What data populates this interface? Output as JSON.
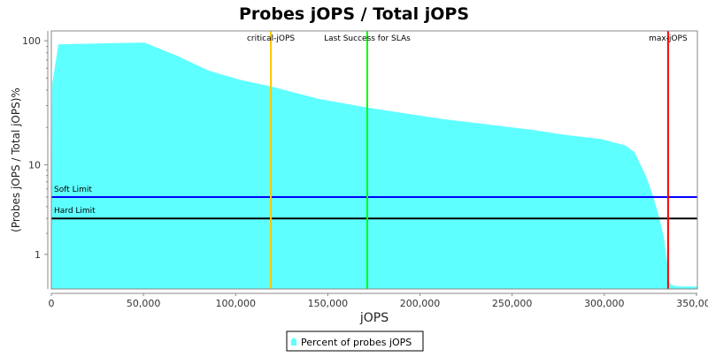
{
  "chart_data": {
    "type": "area",
    "title": "Probes jOPS / Total jOPS",
    "xlabel": "jOPS",
    "ylabel": "(Probes jOPS / Total jOPS)%",
    "xlim": [
      0,
      350500
    ],
    "ylim": [
      0,
      120
    ],
    "y_scale": "log",
    "grid": false,
    "x_ticks": [
      0,
      50000,
      100000,
      150000,
      200000,
      250000,
      300000,
      350000
    ],
    "x_tick_labels": [
      "0",
      "50,000",
      "100,000",
      "150,000",
      "200,000",
      "250,000",
      "300,000",
      "350,000"
    ],
    "y_ticks": [
      1,
      10,
      100
    ],
    "y_tick_labels": [
      "1",
      "10",
      "100"
    ],
    "series": [
      {
        "name": "Percent of probes jOPS",
        "color": "#5effff",
        "x": [
          0,
          480,
          3840,
          50400,
          68200,
          85500,
          101800,
          119100,
          145000,
          171400,
          212200,
          260200,
          279400,
          298600,
          311600,
          316400,
          322600,
          326500,
          329800,
          332200,
          334200,
          334600,
          336100,
          339000,
          350500
        ],
        "y": [
          0,
          44.9,
          93.7,
          96.8,
          75.7,
          57.4,
          48.7,
          42.8,
          34.0,
          28.9,
          23.4,
          19.2,
          17.4,
          16.1,
          14.3,
          12.6,
          7.9,
          5.06,
          3.06,
          1.85,
          0.64,
          0.2,
          0.095,
          0.055,
          0.05
        ]
      }
    ],
    "vertical_markers": [
      {
        "label": "critical-jOPS",
        "x": 119100,
        "color": "#ffc800"
      },
      {
        "label": "Last Success for SLAs",
        "x": 171400,
        "color": "#00ff00"
      },
      {
        "label": "max-jOPS",
        "x": 334600,
        "color": "#ff0000"
      }
    ],
    "horizontal_markers": [
      {
        "label": "Soft Limit",
        "y": 5,
        "color": "#0000ff"
      },
      {
        "label": "Hard Limit",
        "y": 3,
        "color": "#000000"
      }
    ],
    "legend": {
      "placement": "bottom",
      "entries": [
        "Percent of probes jOPS"
      ]
    }
  }
}
